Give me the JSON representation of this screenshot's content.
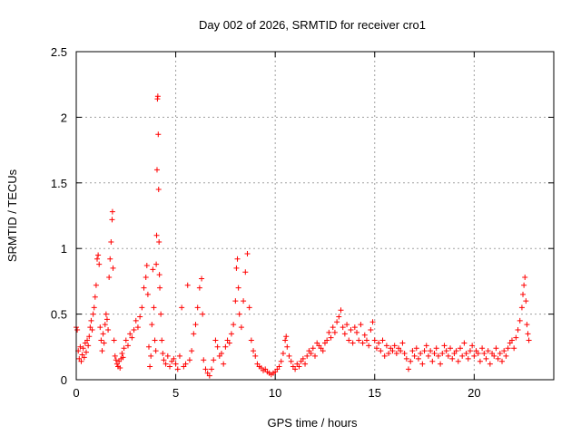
{
  "chart_data": {
    "type": "scatter",
    "title": "Day 002 of 2026, SRMTID for receiver cro1",
    "xlabel": "GPS time / hours",
    "ylabel": "SRMTID / TECUs",
    "xlim": [
      0,
      24
    ],
    "ylim": [
      0,
      2.5
    ],
    "x_ticks": [
      0,
      5,
      10,
      15,
      20
    ],
    "x_tick_labels": [
      "0",
      "5",
      "10",
      "15",
      "20"
    ],
    "y_ticks": [
      0,
      0.5,
      1,
      1.5,
      2,
      2.5
    ],
    "y_tick_labels": [
      "0",
      "0.5",
      "1",
      "1.5",
      "2",
      "2.5"
    ],
    "grid": true,
    "marker": "+",
    "color": "#ff0000",
    "series": [
      {
        "name": "SRMTID",
        "points": [
          [
            0.0,
            0.4
          ],
          [
            0.05,
            0.38
          ],
          [
            0.1,
            0.22
          ],
          [
            0.15,
            0.16
          ],
          [
            0.2,
            0.25
          ],
          [
            0.25,
            0.14
          ],
          [
            0.3,
            0.19
          ],
          [
            0.35,
            0.24
          ],
          [
            0.4,
            0.17
          ],
          [
            0.45,
            0.28
          ],
          [
            0.5,
            0.21
          ],
          [
            0.55,
            0.3
          ],
          [
            0.6,
            0.26
          ],
          [
            0.65,
            0.33
          ],
          [
            0.7,
            0.4
          ],
          [
            0.75,
            0.45
          ],
          [
            0.8,
            0.38
          ],
          [
            0.85,
            0.5
          ],
          [
            0.9,
            0.55
          ],
          [
            0.95,
            0.63
          ],
          [
            1.0,
            0.72
          ],
          [
            1.05,
            0.92
          ],
          [
            1.1,
            0.95
          ],
          [
            1.15,
            0.88
          ],
          [
            1.2,
            0.4
          ],
          [
            1.25,
            0.3
          ],
          [
            1.3,
            0.22
          ],
          [
            1.35,
            0.35
          ],
          [
            1.4,
            0.28
          ],
          [
            1.45,
            0.42
          ],
          [
            1.5,
            0.5
          ],
          [
            1.55,
            0.46
          ],
          [
            1.6,
            0.38
          ],
          [
            1.65,
            0.78
          ],
          [
            1.7,
            0.92
          ],
          [
            1.75,
            1.05
          ],
          [
            1.8,
            1.22
          ],
          [
            1.82,
            1.28
          ],
          [
            1.85,
            0.85
          ],
          [
            1.9,
            0.3
          ],
          [
            1.95,
            0.18
          ],
          [
            2.0,
            0.15
          ],
          [
            2.05,
            0.12
          ],
          [
            2.1,
            0.1
          ],
          [
            2.15,
            0.14
          ],
          [
            2.2,
            0.09
          ],
          [
            2.25,
            0.16
          ],
          [
            2.3,
            0.2
          ],
          [
            2.35,
            0.17
          ],
          [
            2.4,
            0.24
          ],
          [
            2.5,
            0.3
          ],
          [
            2.6,
            0.26
          ],
          [
            2.7,
            0.35
          ],
          [
            2.8,
            0.32
          ],
          [
            2.9,
            0.38
          ],
          [
            3.0,
            0.45
          ],
          [
            3.1,
            0.4
          ],
          [
            3.2,
            0.48
          ],
          [
            3.3,
            0.55
          ],
          [
            3.4,
            0.7
          ],
          [
            3.5,
            0.78
          ],
          [
            3.55,
            0.87
          ],
          [
            3.6,
            0.65
          ],
          [
            3.65,
            0.25
          ],
          [
            3.7,
            0.1
          ],
          [
            3.75,
            0.18
          ],
          [
            3.8,
            0.42
          ],
          [
            3.85,
            0.84
          ],
          [
            3.9,
            0.55
          ],
          [
            3.95,
            0.3
          ],
          [
            4.0,
            0.22
          ],
          [
            4.02,
            0.88
          ],
          [
            4.04,
            1.1
          ],
          [
            4.06,
            1.6
          ],
          [
            4.08,
            2.14
          ],
          [
            4.1,
            2.16
          ],
          [
            4.12,
            1.87
          ],
          [
            4.14,
            1.45
          ],
          [
            4.16,
            1.05
          ],
          [
            4.18,
            0.8
          ],
          [
            4.2,
            0.7
          ],
          [
            4.25,
            0.5
          ],
          [
            4.3,
            0.3
          ],
          [
            4.35,
            0.2
          ],
          [
            4.4,
            0.15
          ],
          [
            4.5,
            0.12
          ],
          [
            4.6,
            0.18
          ],
          [
            4.7,
            0.1
          ],
          [
            4.8,
            0.14
          ],
          [
            4.9,
            0.16
          ],
          [
            5.0,
            0.12
          ],
          [
            5.1,
            0.08
          ],
          [
            5.2,
            0.18
          ],
          [
            5.3,
            0.55
          ],
          [
            5.4,
            0.1
          ],
          [
            5.5,
            0.12
          ],
          [
            5.6,
            0.72
          ],
          [
            5.7,
            0.15
          ],
          [
            5.8,
            0.22
          ],
          [
            5.9,
            0.35
          ],
          [
            6.0,
            0.42
          ],
          [
            6.1,
            0.55
          ],
          [
            6.2,
            0.7
          ],
          [
            6.3,
            0.77
          ],
          [
            6.35,
            0.5
          ],
          [
            6.4,
            0.15
          ],
          [
            6.5,
            0.08
          ],
          [
            6.6,
            0.05
          ],
          [
            6.7,
            0.03
          ],
          [
            6.8,
            0.08
          ],
          [
            6.9,
            0.15
          ],
          [
            7.0,
            0.3
          ],
          [
            7.1,
            0.25
          ],
          [
            7.2,
            0.18
          ],
          [
            7.3,
            0.2
          ],
          [
            7.4,
            0.12
          ],
          [
            7.5,
            0.25
          ],
          [
            7.6,
            0.3
          ],
          [
            7.7,
            0.28
          ],
          [
            7.8,
            0.35
          ],
          [
            7.9,
            0.42
          ],
          [
            8.0,
            0.6
          ],
          [
            8.05,
            0.85
          ],
          [
            8.1,
            0.92
          ],
          [
            8.15,
            0.7
          ],
          [
            8.2,
            0.5
          ],
          [
            8.3,
            0.4
          ],
          [
            8.4,
            0.6
          ],
          [
            8.5,
            0.82
          ],
          [
            8.6,
            0.96
          ],
          [
            8.7,
            0.55
          ],
          [
            8.8,
            0.3
          ],
          [
            8.9,
            0.22
          ],
          [
            9.0,
            0.18
          ],
          [
            9.1,
            0.12
          ],
          [
            9.2,
            0.1
          ],
          [
            9.3,
            0.09
          ],
          [
            9.4,
            0.07
          ],
          [
            9.5,
            0.08
          ],
          [
            9.6,
            0.06
          ],
          [
            9.7,
            0.05
          ],
          [
            9.8,
            0.04
          ],
          [
            9.9,
            0.05
          ],
          [
            10.0,
            0.06
          ],
          [
            10.1,
            0.08
          ],
          [
            10.2,
            0.1
          ],
          [
            10.3,
            0.14
          ],
          [
            10.4,
            0.2
          ],
          [
            10.5,
            0.3
          ],
          [
            10.55,
            0.33
          ],
          [
            10.6,
            0.25
          ],
          [
            10.7,
            0.18
          ],
          [
            10.8,
            0.14
          ],
          [
            10.9,
            0.1
          ],
          [
            11.0,
            0.08
          ],
          [
            11.1,
            0.12
          ],
          [
            11.2,
            0.1
          ],
          [
            11.3,
            0.14
          ],
          [
            11.4,
            0.16
          ],
          [
            11.5,
            0.12
          ],
          [
            11.6,
            0.18
          ],
          [
            11.7,
            0.22
          ],
          [
            11.8,
            0.2
          ],
          [
            11.9,
            0.24
          ],
          [
            12.0,
            0.18
          ],
          [
            12.1,
            0.28
          ],
          [
            12.2,
            0.26
          ],
          [
            12.3,
            0.24
          ],
          [
            12.4,
            0.22
          ],
          [
            12.5,
            0.28
          ],
          [
            12.6,
            0.3
          ],
          [
            12.7,
            0.36
          ],
          [
            12.8,
            0.32
          ],
          [
            12.9,
            0.4
          ],
          [
            13.0,
            0.36
          ],
          [
            13.1,
            0.44
          ],
          [
            13.2,
            0.48
          ],
          [
            13.3,
            0.53
          ],
          [
            13.4,
            0.4
          ],
          [
            13.5,
            0.35
          ],
          [
            13.6,
            0.42
          ],
          [
            13.7,
            0.3
          ],
          [
            13.8,
            0.38
          ],
          [
            13.9,
            0.28
          ],
          [
            14.0,
            0.4
          ],
          [
            14.1,
            0.36
          ],
          [
            14.2,
            0.3
          ],
          [
            14.3,
            0.42
          ],
          [
            14.4,
            0.28
          ],
          [
            14.5,
            0.34
          ],
          [
            14.6,
            0.3
          ],
          [
            14.7,
            0.26
          ],
          [
            14.8,
            0.38
          ],
          [
            14.9,
            0.44
          ],
          [
            15.0,
            0.3
          ],
          [
            15.1,
            0.24
          ],
          [
            15.2,
            0.28
          ],
          [
            15.3,
            0.22
          ],
          [
            15.4,
            0.3
          ],
          [
            15.5,
            0.18
          ],
          [
            15.6,
            0.26
          ],
          [
            15.7,
            0.2
          ],
          [
            15.8,
            0.24
          ],
          [
            15.9,
            0.22
          ],
          [
            16.0,
            0.26
          ],
          [
            16.1,
            0.2
          ],
          [
            16.2,
            0.24
          ],
          [
            16.3,
            0.22
          ],
          [
            16.4,
            0.28
          ],
          [
            16.5,
            0.2
          ],
          [
            16.6,
            0.16
          ],
          [
            16.7,
            0.08
          ],
          [
            16.8,
            0.14
          ],
          [
            16.9,
            0.22
          ],
          [
            17.0,
            0.18
          ],
          [
            17.1,
            0.24
          ],
          [
            17.2,
            0.16
          ],
          [
            17.3,
            0.2
          ],
          [
            17.4,
            0.12
          ],
          [
            17.5,
            0.22
          ],
          [
            17.6,
            0.26
          ],
          [
            17.7,
            0.18
          ],
          [
            17.8,
            0.22
          ],
          [
            17.9,
            0.14
          ],
          [
            18.0,
            0.2
          ],
          [
            18.1,
            0.24
          ],
          [
            18.2,
            0.18
          ],
          [
            18.3,
            0.12
          ],
          [
            18.4,
            0.2
          ],
          [
            18.5,
            0.26
          ],
          [
            18.6,
            0.22
          ],
          [
            18.7,
            0.18
          ],
          [
            18.8,
            0.24
          ],
          [
            18.9,
            0.16
          ],
          [
            19.0,
            0.2
          ],
          [
            19.1,
            0.22
          ],
          [
            19.2,
            0.14
          ],
          [
            19.3,
            0.24
          ],
          [
            19.4,
            0.18
          ],
          [
            19.5,
            0.28
          ],
          [
            19.6,
            0.2
          ],
          [
            19.7,
            0.16
          ],
          [
            19.8,
            0.22
          ],
          [
            19.9,
            0.26
          ],
          [
            20.0,
            0.18
          ],
          [
            20.1,
            0.22
          ],
          [
            20.2,
            0.2
          ],
          [
            20.3,
            0.14
          ],
          [
            20.4,
            0.24
          ],
          [
            20.5,
            0.2
          ],
          [
            20.6,
            0.16
          ],
          [
            20.7,
            0.22
          ],
          [
            20.8,
            0.12
          ],
          [
            20.9,
            0.2
          ],
          [
            21.0,
            0.18
          ],
          [
            21.1,
            0.24
          ],
          [
            21.2,
            0.16
          ],
          [
            21.3,
            0.2
          ],
          [
            21.4,
            0.14
          ],
          [
            21.5,
            0.22
          ],
          [
            21.6,
            0.18
          ],
          [
            21.7,
            0.24
          ],
          [
            21.8,
            0.28
          ],
          [
            21.9,
            0.3
          ],
          [
            22.0,
            0.24
          ],
          [
            22.1,
            0.32
          ],
          [
            22.2,
            0.38
          ],
          [
            22.3,
            0.45
          ],
          [
            22.4,
            0.55
          ],
          [
            22.45,
            0.65
          ],
          [
            22.5,
            0.72
          ],
          [
            22.55,
            0.78
          ],
          [
            22.6,
            0.6
          ],
          [
            22.65,
            0.42
          ],
          [
            22.7,
            0.35
          ],
          [
            22.75,
            0.3
          ]
        ]
      }
    ]
  }
}
